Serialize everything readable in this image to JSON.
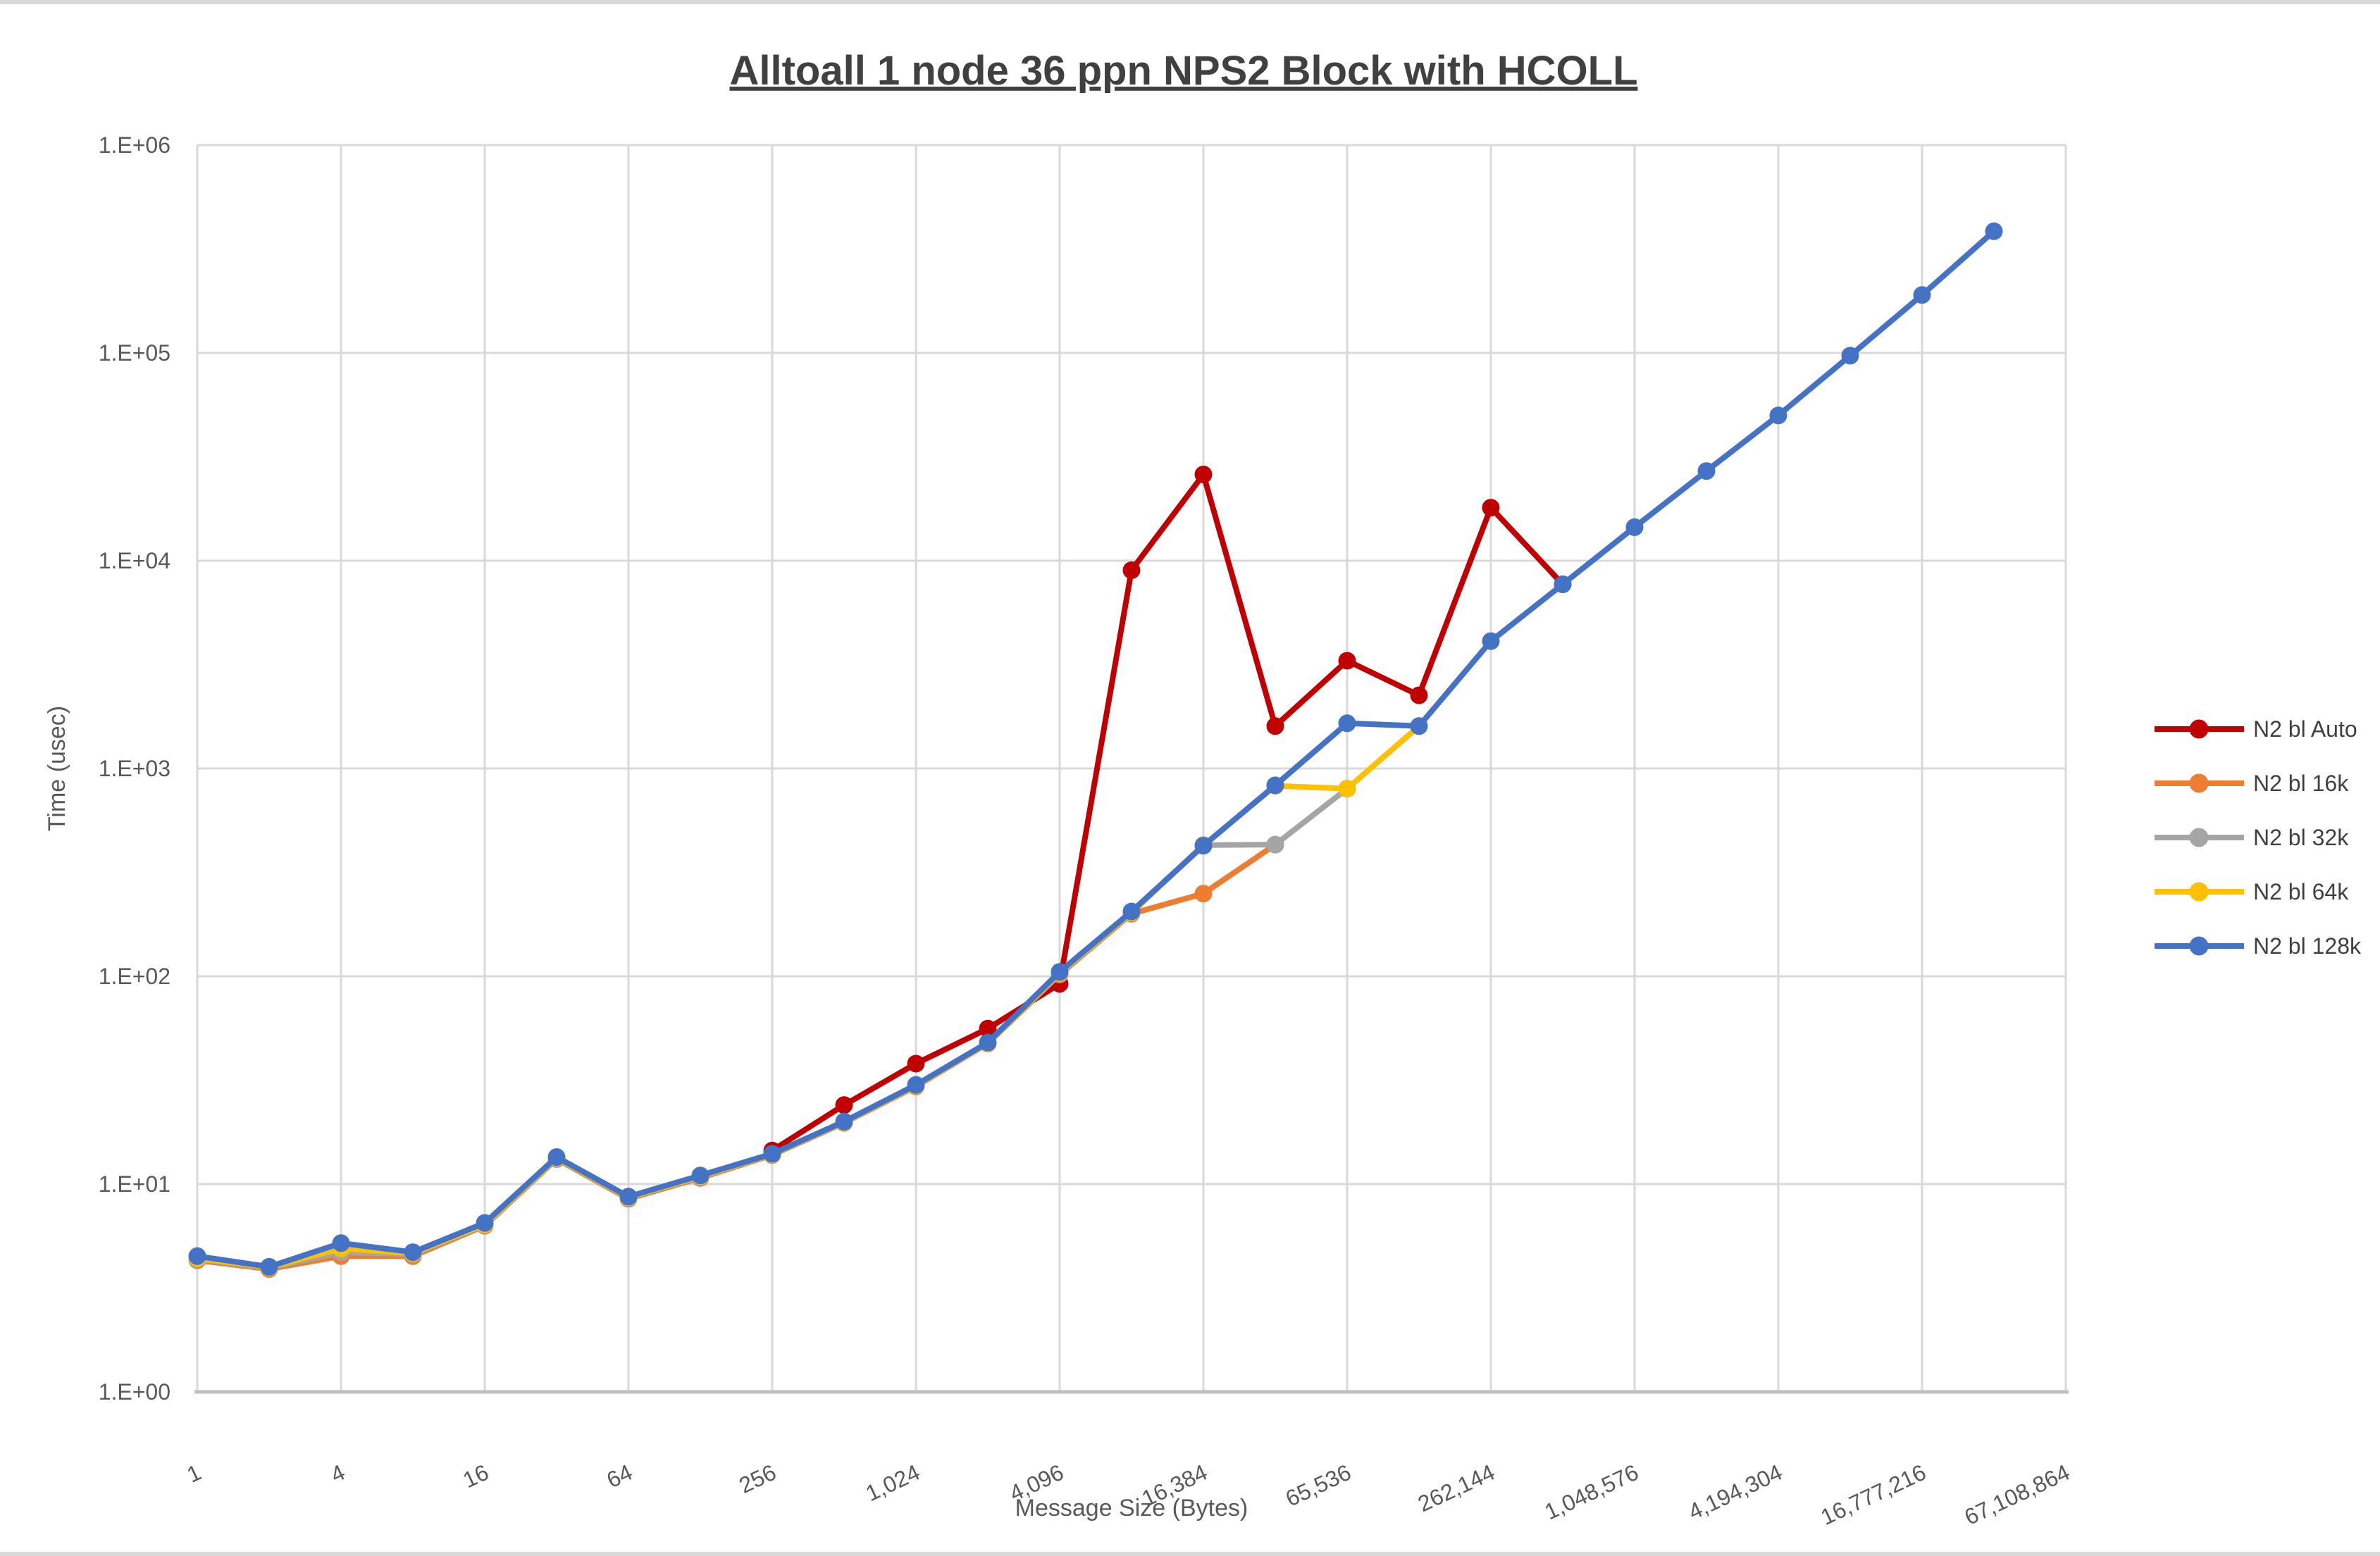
{
  "window": {
    "top_edge_color": "#d9d9d9",
    "bottom_edge_color": "#d9d9d9",
    "background": "#ffffff"
  },
  "chart_data": {
    "type": "line",
    "title": "Alltoall 1 node 36 ppn NPS2 Block with HCOLL",
    "xlabel": "Message Size (Bytes)",
    "ylabel": "Time (usec)",
    "x_scale": "log2",
    "y_scale": "log10",
    "x_range": [
      1,
      67108864
    ],
    "y_range": [
      1,
      1000000
    ],
    "grid": true,
    "legend_position": "right",
    "y_ticks": [
      "1.E+06",
      "1.E+05",
      "1.E+04",
      "1.E+03",
      "1.E+02",
      "1.E+01",
      "1.E+00"
    ],
    "x_ticks": [
      "1",
      "4",
      "16",
      "64",
      "256",
      "1,024",
      "4,096",
      "16,384",
      "65,536",
      "262,144",
      "1,048,576",
      "4,194,304",
      "16,777,216",
      "67,108,864"
    ],
    "style": {
      "gridline_color": "#d9d9d9",
      "axis_line_color": "#bfbfbf",
      "tick_text_color": "#595959",
      "title_text_color": "#404040",
      "legend_text_color": "#404040",
      "line_width": 8,
      "marker_radius": 12.5
    },
    "series": [
      {
        "name": "N2 bl Auto",
        "color": "#c00000",
        "points": [
          [
            256,
            14.5
          ],
          [
            512,
            24
          ],
          [
            1024,
            38
          ],
          [
            2048,
            56
          ],
          [
            4096,
            92
          ],
          [
            8192,
            9000
          ],
          [
            16384,
            26000
          ],
          [
            32768,
            1600
          ],
          [
            65536,
            3300
          ],
          [
            131072,
            2250
          ],
          [
            262144,
            18000
          ],
          [
            524288,
            7700
          ]
        ]
      },
      {
        "name": "N2 bl 16k",
        "color": "#ed7d31",
        "points": [
          [
            1,
            4.3
          ],
          [
            2,
            3.9
          ],
          [
            4,
            4.5
          ],
          [
            8,
            4.5
          ],
          [
            16,
            6.3
          ],
          [
            32,
            13.2
          ],
          [
            64,
            8.5
          ],
          [
            128,
            10.7
          ],
          [
            256,
            13.8
          ],
          [
            512,
            19.7
          ],
          [
            1024,
            29.5
          ],
          [
            2048,
            47.5
          ],
          [
            4096,
            102
          ],
          [
            8192,
            200
          ],
          [
            16384,
            250
          ],
          [
            32768,
            430
          ]
        ]
      },
      {
        "name": "N2 bl 32k",
        "color": "#a5a5a5",
        "points": [
          [
            1,
            4.35
          ],
          [
            2,
            3.95
          ],
          [
            4,
            4.7
          ],
          [
            8,
            4.6
          ],
          [
            16,
            6.35
          ],
          [
            32,
            13.3
          ],
          [
            64,
            8.6
          ],
          [
            128,
            10.8
          ],
          [
            256,
            13.9
          ],
          [
            512,
            19.8
          ],
          [
            1024,
            29.7
          ],
          [
            2048,
            47.7
          ],
          [
            4096,
            103
          ],
          [
            8192,
            202
          ],
          [
            16384,
            428
          ],
          [
            32768,
            430
          ],
          [
            65536,
            800
          ]
        ]
      },
      {
        "name": "N2 bl 64k",
        "color": "#ffc000",
        "points": [
          [
            1,
            4.4
          ],
          [
            2,
            3.98
          ],
          [
            4,
            4.9
          ],
          [
            8,
            4.65
          ],
          [
            16,
            6.4
          ],
          [
            32,
            13.4
          ],
          [
            64,
            8.65
          ],
          [
            128,
            10.9
          ],
          [
            256,
            13.95
          ],
          [
            512,
            19.9
          ],
          [
            1024,
            29.8
          ],
          [
            2048,
            47.8
          ],
          [
            4096,
            104
          ],
          [
            8192,
            203
          ],
          [
            16384,
            426
          ],
          [
            32768,
            825
          ],
          [
            65536,
            800
          ],
          [
            131072,
            1600
          ]
        ]
      },
      {
        "name": "N2 bl 128k",
        "color": "#4472c4",
        "points": [
          [
            1,
            4.5
          ],
          [
            2,
            4.0
          ],
          [
            4,
            5.2
          ],
          [
            8,
            4.7
          ],
          [
            16,
            6.5
          ],
          [
            32,
            13.5
          ],
          [
            64,
            8.7
          ],
          [
            128,
            11
          ],
          [
            256,
            14
          ],
          [
            512,
            20
          ],
          [
            1024,
            30
          ],
          [
            2048,
            48
          ],
          [
            4096,
            105
          ],
          [
            8192,
            205
          ],
          [
            16384,
            425
          ],
          [
            32768,
            830
          ],
          [
            65536,
            1650
          ],
          [
            131072,
            1600
          ],
          [
            262144,
            4100
          ],
          [
            524288,
            7700
          ],
          [
            1048576,
            14500
          ],
          [
            2097152,
            27000
          ],
          [
            4194304,
            50000
          ],
          [
            8388608,
            97000
          ],
          [
            16777216,
            190000
          ],
          [
            33554432,
            385000
          ]
        ]
      }
    ]
  }
}
